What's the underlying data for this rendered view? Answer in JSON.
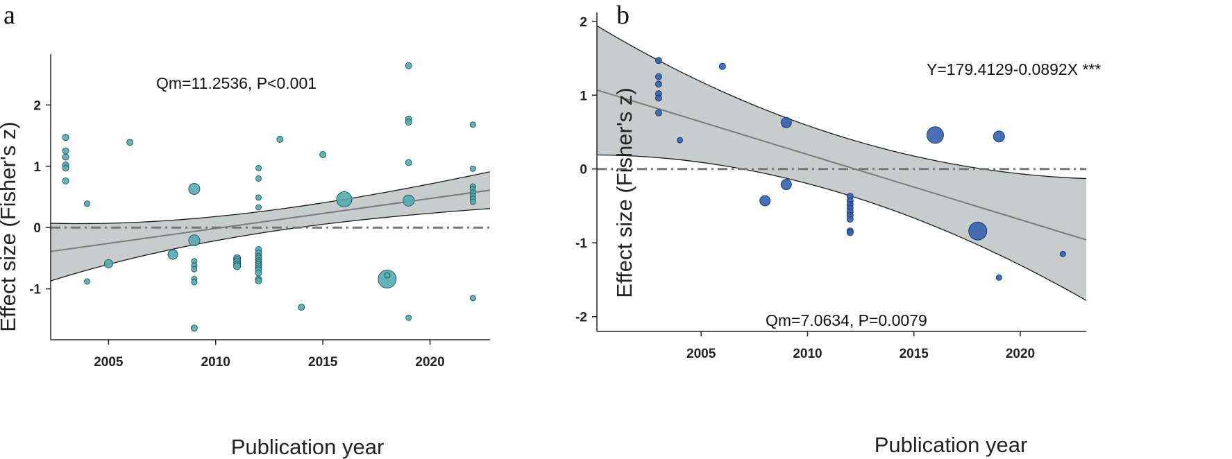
{
  "figure": {
    "panels": [
      "a",
      "b"
    ]
  },
  "chart_data": [
    {
      "panel": "a",
      "type": "scatter",
      "xlabel": "Publication year",
      "ylabel": "Effect size (Fisher's z)",
      "annotations": [
        "Qm=11.2536, P<0.001"
      ],
      "xlim": [
        2002.3,
        2022.8
      ],
      "ylim": [
        -1.83,
        2.83
      ],
      "xticks": [
        2005,
        2010,
        2015,
        2020
      ],
      "yticks": [
        -1,
        0,
        1,
        2
      ],
      "colors": {
        "point_fill": "#56aaae",
        "point_stroke": "#1f5f66",
        "band": "#c9cccd",
        "band_edge": "#1a1a1a",
        "fit": "#7a7a7a",
        "ref": "#777777"
      },
      "regression": {
        "x": [
          2002.3,
          2022.8
        ],
        "y": [
          -0.39,
          0.61
        ],
        "ci_lower": [
          -0.87,
          0.31
        ],
        "ci_upper": [
          0.07,
          0.91
        ]
      },
      "reference_y": 0,
      "points": [
        {
          "x": 2003,
          "y": 1.47,
          "s": 4.5
        },
        {
          "x": 2003,
          "y": 1.25,
          "s": 4.5
        },
        {
          "x": 2003,
          "y": 1.15,
          "s": 4.5
        },
        {
          "x": 2003,
          "y": 1.02,
          "s": 4.5
        },
        {
          "x": 2003,
          "y": 0.97,
          "s": 4.5
        },
        {
          "x": 2003,
          "y": 0.76,
          "s": 4.5
        },
        {
          "x": 2004,
          "y": 0.39,
          "s": 4
        },
        {
          "x": 2004,
          "y": -0.88,
          "s": 4
        },
        {
          "x": 2005,
          "y": -0.59,
          "s": 6
        },
        {
          "x": 2006,
          "y": 1.39,
          "s": 4.5
        },
        {
          "x": 2008,
          "y": -0.44,
          "s": 7
        },
        {
          "x": 2009,
          "y": 0.63,
          "s": 8
        },
        {
          "x": 2009,
          "y": -0.21,
          "s": 8
        },
        {
          "x": 2009,
          "y": -0.55,
          "s": 4
        },
        {
          "x": 2009,
          "y": -0.62,
          "s": 4
        },
        {
          "x": 2009,
          "y": -0.68,
          "s": 4
        },
        {
          "x": 2009,
          "y": -0.84,
          "s": 4
        },
        {
          "x": 2009,
          "y": -0.89,
          "s": 4
        },
        {
          "x": 2009,
          "y": -1.64,
          "s": 4.5
        },
        {
          "x": 2011,
          "y": -0.5,
          "s": 5
        },
        {
          "x": 2011,
          "y": -0.53,
          "s": 5
        },
        {
          "x": 2011,
          "y": -0.56,
          "s": 5
        },
        {
          "x": 2011,
          "y": -0.6,
          "s": 5
        },
        {
          "x": 2011,
          "y": -0.63,
          "s": 5
        },
        {
          "x": 2012,
          "y": 0.97,
          "s": 4
        },
        {
          "x": 2012,
          "y": 0.8,
          "s": 4
        },
        {
          "x": 2012,
          "y": 0.49,
          "s": 4
        },
        {
          "x": 2012,
          "y": 0.33,
          "s": 4
        },
        {
          "x": 2012,
          "y": -0.36,
          "s": 4.5
        },
        {
          "x": 2012,
          "y": -0.42,
          "s": 4.5
        },
        {
          "x": 2012,
          "y": -0.47,
          "s": 4.5
        },
        {
          "x": 2012,
          "y": -0.5,
          "s": 4.5
        },
        {
          "x": 2012,
          "y": -0.54,
          "s": 4.5
        },
        {
          "x": 2012,
          "y": -0.57,
          "s": 4.5
        },
        {
          "x": 2012,
          "y": -0.6,
          "s": 4.5
        },
        {
          "x": 2012,
          "y": -0.63,
          "s": 4.5
        },
        {
          "x": 2012,
          "y": -0.66,
          "s": 4.5
        },
        {
          "x": 2012,
          "y": -0.69,
          "s": 4.5
        },
        {
          "x": 2012,
          "y": -0.74,
          "s": 4.5
        },
        {
          "x": 2012,
          "y": -0.84,
          "s": 4.5
        },
        {
          "x": 2012,
          "y": -0.87,
          "s": 4.5
        },
        {
          "x": 2013,
          "y": 1.44,
          "s": 4.5
        },
        {
          "x": 2014,
          "y": -1.3,
          "s": 4.5
        },
        {
          "x": 2015,
          "y": 1.19,
          "s": 4.5
        },
        {
          "x": 2016,
          "y": 0.46,
          "s": 11
        },
        {
          "x": 2018,
          "y": -0.84,
          "s": 13
        },
        {
          "x": 2018,
          "y": -0.78,
          "s": 4
        },
        {
          "x": 2019,
          "y": 2.64,
          "s": 4.5
        },
        {
          "x": 2019,
          "y": 1.77,
          "s": 4.5
        },
        {
          "x": 2019,
          "y": 1.72,
          "s": 4.5
        },
        {
          "x": 2019,
          "y": 1.06,
          "s": 4.5
        },
        {
          "x": 2019,
          "y": 0.44,
          "s": 8
        },
        {
          "x": 2019,
          "y": -1.47,
          "s": 4
        },
        {
          "x": 2022,
          "y": 1.68,
          "s": 4
        },
        {
          "x": 2022,
          "y": 0.96,
          "s": 4
        },
        {
          "x": 2022,
          "y": 0.67,
          "s": 4
        },
        {
          "x": 2022,
          "y": 0.63,
          "s": 4
        },
        {
          "x": 2022,
          "y": 0.57,
          "s": 4
        },
        {
          "x": 2022,
          "y": 0.52,
          "s": 4
        },
        {
          "x": 2022,
          "y": 0.47,
          "s": 4
        },
        {
          "x": 2022,
          "y": 0.42,
          "s": 4
        },
        {
          "x": 2022,
          "y": -1.15,
          "s": 4
        }
      ]
    },
    {
      "panel": "b",
      "type": "scatter",
      "xlabel": "Publication year",
      "ylabel": "Effect size (Fisher's z)",
      "annotations": [
        "Y=179.4129-0.0892X ***",
        "Qm=7.0634, P=0.0079"
      ],
      "xlim": [
        2000.1,
        2023.1
      ],
      "ylim": [
        -2.2,
        2.12
      ],
      "xticks": [
        2005,
        2010,
        2015,
        2020
      ],
      "yticks": [
        -2,
        -1,
        0,
        1,
        2
      ],
      "colors": {
        "point_fill": "#3560ad",
        "point_stroke": "#1b3a78",
        "band": "#c9cccd",
        "band_edge": "#1a1a1a",
        "fit": "#7a7a7a",
        "ref": "#777777"
      },
      "regression": {
        "x": [
          2000.1,
          2023.1
        ],
        "y": [
          1.07,
          -0.96
        ],
        "ci_lower": [
          0.19,
          -1.78
        ],
        "ci_upper": [
          1.94,
          -0.13
        ]
      },
      "reference_y": 0,
      "points": [
        {
          "x": 2003,
          "y": 1.47,
          "s": 4.5
        },
        {
          "x": 2003,
          "y": 1.25,
          "s": 4.5
        },
        {
          "x": 2003,
          "y": 1.15,
          "s": 4.5
        },
        {
          "x": 2003,
          "y": 1.02,
          "s": 4.5
        },
        {
          "x": 2003,
          "y": 0.96,
          "s": 4.5
        },
        {
          "x": 2003,
          "y": 0.76,
          "s": 4.5
        },
        {
          "x": 2004,
          "y": 0.39,
          "s": 4
        },
        {
          "x": 2006,
          "y": 1.39,
          "s": 4.5
        },
        {
          "x": 2008,
          "y": -0.43,
          "s": 7.5
        },
        {
          "x": 2009,
          "y": 0.63,
          "s": 7.5
        },
        {
          "x": 2009,
          "y": -0.21,
          "s": 7.5
        },
        {
          "x": 2012,
          "y": -0.37,
          "s": 4.5
        },
        {
          "x": 2012,
          "y": -0.43,
          "s": 4.5
        },
        {
          "x": 2012,
          "y": -0.48,
          "s": 4.5
        },
        {
          "x": 2012,
          "y": -0.53,
          "s": 4.5
        },
        {
          "x": 2012,
          "y": -0.58,
          "s": 4.5
        },
        {
          "x": 2012,
          "y": -0.63,
          "s": 4.5
        },
        {
          "x": 2012,
          "y": -0.68,
          "s": 4.5
        },
        {
          "x": 2012,
          "y": -0.84,
          "s": 4.5
        },
        {
          "x": 2012,
          "y": -0.86,
          "s": 4.5
        },
        {
          "x": 2016,
          "y": 0.46,
          "s": 12
        },
        {
          "x": 2018,
          "y": -0.84,
          "s": 13
        },
        {
          "x": 2019,
          "y": 0.44,
          "s": 8
        },
        {
          "x": 2019,
          "y": -1.47,
          "s": 4
        },
        {
          "x": 2022,
          "y": -1.15,
          "s": 4
        }
      ]
    }
  ]
}
